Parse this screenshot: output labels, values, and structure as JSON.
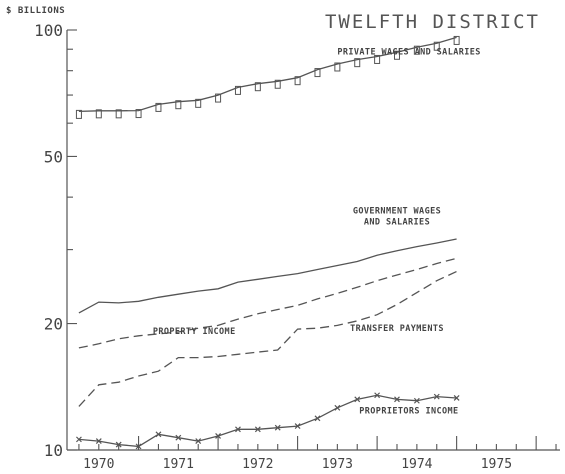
{
  "chart_data": {
    "type": "line",
    "title": "TWELFTH DISTRICT",
    "units_label": "$ BILLIONS",
    "y_scale": "log",
    "ylim": [
      10,
      100
    ],
    "y_ticks": [
      {
        "value": 100,
        "label": "100"
      },
      {
        "value": 50,
        "label": "50"
      },
      {
        "value": 20,
        "label": "20"
      },
      {
        "value": 10,
        "label": "10"
      }
    ],
    "y_minor_ticks": [
      30,
      40,
      60,
      70,
      80,
      90
    ],
    "xlim": [
      1969.6,
      1975.8
    ],
    "x_ticks": [
      {
        "value": 1970,
        "label": "1970"
      },
      {
        "value": 1971,
        "label": "1971"
      },
      {
        "value": 1972,
        "label": "1972"
      },
      {
        "value": 1973,
        "label": "1973"
      },
      {
        "value": 1974,
        "label": "1974"
      },
      {
        "value": 1975,
        "label": "1975"
      }
    ],
    "x_major_ticks": [
      1970.5,
      1971.5,
      1972.5,
      1973.5,
      1974.5,
      1975.5
    ],
    "x_minor_step": 0.25,
    "grid": false,
    "series": [
      {
        "name": "PRIVATE WAGES AND SALARIES",
        "style": "solid",
        "marker": "square",
        "x": [
          1969.75,
          1970,
          1970.25,
          1970.5,
          1970.75,
          1971,
          1971.25,
          1971.5,
          1971.75,
          1972,
          1972.25,
          1972.5,
          1972.75,
          1973,
          1973.25,
          1973.5,
          1973.75,
          1974,
          1974.25,
          1974.5
        ],
        "values": [
          64,
          64.2,
          64.2,
          64.3,
          66.5,
          67.5,
          68,
          70,
          73,
          74.5,
          75.5,
          77,
          80.5,
          83,
          85,
          86.5,
          88.5,
          91,
          93,
          96
        ]
      },
      {
        "name": "GOVERNMENT WAGES AND SALARIES",
        "style": "solid",
        "marker": "none",
        "x": [
          1969.75,
          1970,
          1970.25,
          1970.5,
          1970.75,
          1971,
          1971.25,
          1971.5,
          1971.75,
          1972,
          1972.25,
          1972.5,
          1972.75,
          1973,
          1973.25,
          1973.5,
          1973.75,
          1974,
          1974.25,
          1974.5
        ],
        "values": [
          21.2,
          22.5,
          22.4,
          22.6,
          23.1,
          23.5,
          23.9,
          24.2,
          25.1,
          25.5,
          25.9,
          26.3,
          26.9,
          27.5,
          28.1,
          29.1,
          29.8,
          30.5,
          31.1,
          31.8
        ]
      },
      {
        "name": "PROPERTY INCOME",
        "style": "dashed",
        "marker": "none",
        "x": [
          1969.75,
          1970,
          1970.25,
          1970.5,
          1970.75,
          1971,
          1971.25,
          1971.5,
          1971.75,
          1972,
          1972.25,
          1972.5,
          1972.75,
          1973,
          1973.25,
          1973.5,
          1973.75,
          1974,
          1974.25,
          1974.5
        ],
        "values": [
          17.5,
          17.9,
          18.4,
          18.7,
          18.9,
          19.1,
          19.5,
          19.8,
          20.5,
          21.1,
          21.6,
          22.1,
          22.9,
          23.6,
          24.4,
          25.3,
          26.1,
          26.9,
          27.8,
          28.6
        ]
      },
      {
        "name": "TRANSFER PAYMENTS",
        "style": "dashed",
        "marker": "none",
        "x": [
          1969.75,
          1970,
          1970.25,
          1970.5,
          1970.75,
          1971,
          1971.25,
          1971.5,
          1971.75,
          1972,
          1972.25,
          1972.5,
          1972.75,
          1973,
          1973.25,
          1973.5,
          1973.75,
          1974,
          1974.25,
          1974.5
        ],
        "values": [
          12.7,
          14.3,
          14.5,
          15.0,
          15.4,
          16.6,
          16.6,
          16.7,
          16.9,
          17.1,
          17.3,
          19.4,
          19.5,
          19.8,
          20.3,
          21.0,
          22.2,
          23.7,
          25.3,
          26.6
        ]
      },
      {
        "name": "PROPRIETORS INCOME",
        "style": "solid",
        "marker": "x",
        "x": [
          1969.75,
          1970,
          1970.25,
          1970.5,
          1970.75,
          1971,
          1971.25,
          1971.5,
          1971.75,
          1972,
          1972.25,
          1972.5,
          1972.75,
          1973,
          1973.25,
          1973.5,
          1973.75,
          1974,
          1974.25,
          1974.5
        ],
        "values": [
          10.6,
          10.5,
          10.3,
          10.2,
          10.9,
          10.7,
          10.5,
          10.8,
          11.2,
          11.2,
          11.3,
          11.4,
          11.9,
          12.6,
          13.2,
          13.5,
          13.2,
          13.1,
          13.4,
          13.3
        ]
      }
    ],
    "annotations": [
      {
        "series": 0,
        "lines": [
          "PRIVATE WAGES AND SALARIES"
        ],
        "x": 1973.0,
        "y": 87.5,
        "anchor": "start"
      },
      {
        "series": 1,
        "lines": [
          "GOVERNMENT WAGES",
          "AND SALARIES"
        ],
        "x": 1973.75,
        "y": 36.6,
        "anchor": "middle"
      },
      {
        "series": 2,
        "lines": [
          "PROPERTY INCOME"
        ],
        "x": 1971.2,
        "y": 18.9,
        "anchor": "middle"
      },
      {
        "series": 3,
        "lines": [
          "TRANSFER PAYMENTS"
        ],
        "x": 1973.75,
        "y": 19.2,
        "anchor": "middle"
      },
      {
        "series": 4,
        "lines": [
          "PROPRIETORS INCOME"
        ],
        "x": 1973.9,
        "y": 12.2,
        "anchor": "middle"
      }
    ]
  }
}
